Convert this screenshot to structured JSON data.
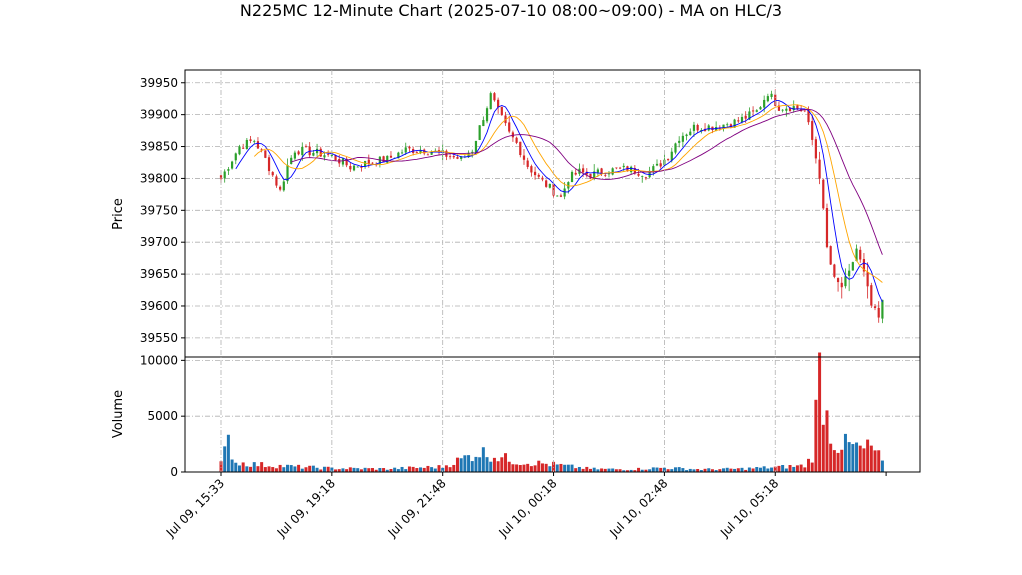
{
  "chart_data": {
    "type": "candlestick",
    "title": "N225MC 12-Minute Chart (2025-07-10 08:00~09:00) - MA on HLC/3",
    "price_panel": {
      "ylabel": "Price",
      "ylim": [
        39520,
        39970
      ],
      "yticks": [
        39550,
        39600,
        39650,
        39700,
        39750,
        39800,
        39850,
        39900,
        39950
      ],
      "grid": true
    },
    "volume_panel": {
      "ylabel": "Volume",
      "ylim": [
        0,
        10300
      ],
      "yticks": [
        0,
        5000,
        10000
      ],
      "grid": true
    },
    "x_tick_labels": [
      "Jul 09, 15:33",
      "Jul 09, 19:18",
      "Jul 09, 21:48",
      "Jul 10, 00:18",
      "Jul 10, 02:48",
      "Jul 10, 05:18"
    ],
    "x_tick_index": [
      0,
      30,
      60,
      90,
      120,
      150
    ],
    "candle_count": 180,
    "colors": {
      "up": "#2ca02c",
      "down": "#d62728",
      "volume_up": "#1f77b4",
      "volume_down": "#d62728",
      "ma_short": "#0000ff",
      "ma_mid": "#ffa500",
      "ma_long": "#800080"
    },
    "anchors": [
      [
        0,
        39800
      ],
      [
        5,
        39850
      ],
      [
        9,
        39860
      ],
      [
        12,
        39830
      ],
      [
        16,
        39780
      ],
      [
        18,
        39820
      ],
      [
        20,
        39845
      ],
      [
        26,
        39840
      ],
      [
        30,
        39835
      ],
      [
        35,
        39818
      ],
      [
        40,
        39825
      ],
      [
        45,
        39830
      ],
      [
        50,
        39845
      ],
      [
        55,
        39845
      ],
      [
        60,
        39838
      ],
      [
        65,
        39830
      ],
      [
        68,
        39845
      ],
      [
        70,
        39880
      ],
      [
        73,
        39930
      ],
      [
        75,
        39905
      ],
      [
        78,
        39870
      ],
      [
        80,
        39855
      ],
      [
        83,
        39820
      ],
      [
        86,
        39800
      ],
      [
        90,
        39780
      ],
      [
        92,
        39770
      ],
      [
        94,
        39800
      ],
      [
        97,
        39810
      ],
      [
        100,
        39805
      ],
      [
        104,
        39812
      ],
      [
        110,
        39815
      ],
      [
        115,
        39808
      ],
      [
        118,
        39818
      ],
      [
        121,
        39835
      ],
      [
        124,
        39865
      ],
      [
        128,
        39880
      ],
      [
        134,
        39882
      ],
      [
        140,
        39890
      ],
      [
        145,
        39905
      ],
      [
        148,
        39935
      ],
      [
        151,
        39912
      ],
      [
        155,
        39912
      ],
      [
        158,
        39905
      ],
      [
        160,
        39860
      ],
      [
        162,
        39805
      ],
      [
        164,
        39690
      ],
      [
        166,
        39640
      ],
      [
        168,
        39630
      ],
      [
        170,
        39650
      ],
      [
        172,
        39690
      ],
      [
        174,
        39650
      ],
      [
        176,
        39600
      ],
      [
        178,
        39580
      ],
      [
        179,
        39605
      ]
    ],
    "volume_anchors": [
      [
        0,
        800
      ],
      [
        2,
        2800
      ],
      [
        4,
        900
      ],
      [
        10,
        700
      ],
      [
        20,
        500
      ],
      [
        30,
        350
      ],
      [
        45,
        300
      ],
      [
        60,
        500
      ],
      [
        70,
        1900
      ],
      [
        80,
        1000
      ],
      [
        90,
        700
      ],
      [
        100,
        300
      ],
      [
        110,
        250
      ],
      [
        120,
        400
      ],
      [
        130,
        250
      ],
      [
        140,
        300
      ],
      [
        150,
        450
      ],
      [
        158,
        600
      ],
      [
        160,
        1500
      ],
      [
        162,
        9400
      ],
      [
        164,
        5200
      ],
      [
        166,
        2700
      ],
      [
        170,
        2500
      ],
      [
        174,
        2100
      ],
      [
        176,
        2400
      ],
      [
        178,
        1500
      ],
      [
        179,
        900
      ]
    ]
  }
}
